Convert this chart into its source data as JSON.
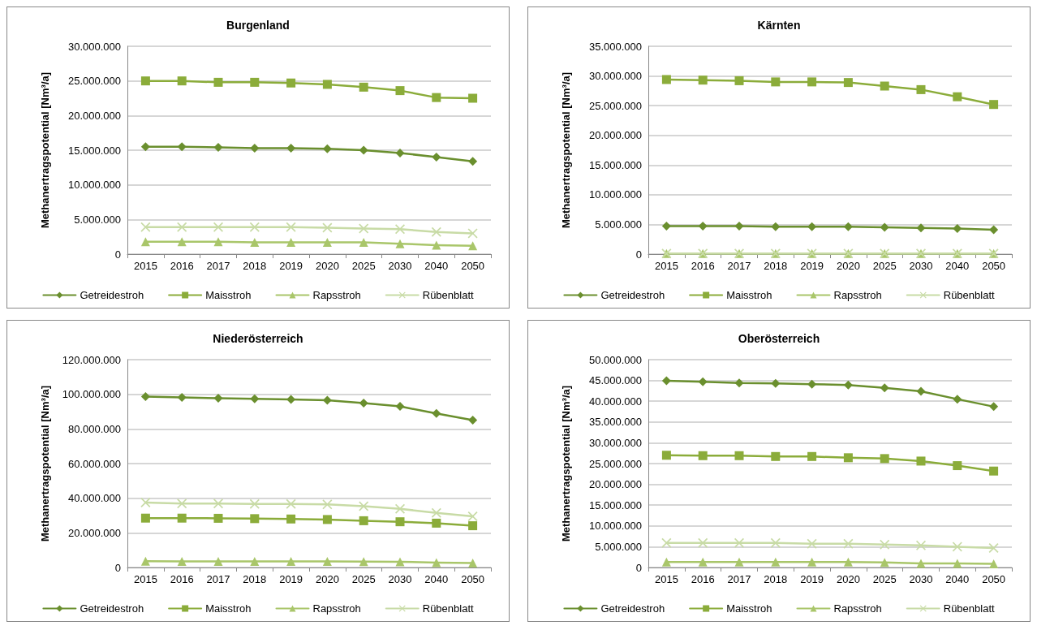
{
  "chart_data": [
    {
      "type": "line",
      "title": "Burgenland",
      "ylabel": "Methanertragspotential [Nm³/a]",
      "categories": [
        "2015",
        "2016",
        "2017",
        "2018",
        "2019",
        "2020",
        "2025",
        "2030",
        "2040",
        "2050"
      ],
      "ylim": [
        0,
        30000000
      ],
      "yticks": [
        {
          "value": 0,
          "label": "0"
        },
        {
          "value": 5000000,
          "label": "5.000.000"
        },
        {
          "value": 10000000,
          "label": "10.000.000"
        },
        {
          "value": 15000000,
          "label": "15.000.000"
        },
        {
          "value": 20000000,
          "label": "20.000.000"
        },
        {
          "value": 25000000,
          "label": "25.000.000"
        },
        {
          "value": 30000000,
          "label": "30.000.000"
        }
      ],
      "grid": "y",
      "legend": "bottom",
      "series": [
        {
          "name": "Getreidestroh",
          "color": "#6a8f2e",
          "marker": "diamond",
          "values": [
            15500000,
            15500000,
            15400000,
            15300000,
            15300000,
            15200000,
            15000000,
            14600000,
            14000000,
            13400000
          ]
        },
        {
          "name": "Maisstroh",
          "color": "#8bac3a",
          "marker": "square",
          "values": [
            25000000,
            25000000,
            24800000,
            24800000,
            24700000,
            24500000,
            24100000,
            23600000,
            22600000,
            22500000
          ]
        },
        {
          "name": "Rapsstroh",
          "color": "#a9c66a",
          "marker": "triangle",
          "values": [
            1800000,
            1800000,
            1800000,
            1700000,
            1700000,
            1700000,
            1700000,
            1500000,
            1300000,
            1200000
          ]
        },
        {
          "name": "Rübenblatt",
          "color": "#c8dba6",
          "marker": "cross",
          "values": [
            3900000,
            3900000,
            3900000,
            3900000,
            3900000,
            3800000,
            3700000,
            3600000,
            3200000,
            3000000
          ]
        }
      ]
    },
    {
      "type": "line",
      "title": "Kärnten",
      "ylabel": "Methanertragspotential [Nm³/a]",
      "categories": [
        "2015",
        "2016",
        "2017",
        "2018",
        "2019",
        "2020",
        "2025",
        "2030",
        "2040",
        "2050"
      ],
      "ylim": [
        0,
        35000000
      ],
      "yticks": [
        {
          "value": 0,
          "label": "0"
        },
        {
          "value": 5000000,
          "label": "5.000.000"
        },
        {
          "value": 10000000,
          "label": "10.000.000"
        },
        {
          "value": 15000000,
          "label": "15.000.000"
        },
        {
          "value": 20000000,
          "label": "20.000.000"
        },
        {
          "value": 25000000,
          "label": "25.000.000"
        },
        {
          "value": 30000000,
          "label": "30.000.000"
        },
        {
          "value": 35000000,
          "label": "35.000.000"
        }
      ],
      "grid": "y",
      "legend": "bottom",
      "series": [
        {
          "name": "Getreidestroh",
          "color": "#6a8f2e",
          "marker": "diamond",
          "values": [
            4700000,
            4700000,
            4700000,
            4600000,
            4600000,
            4600000,
            4500000,
            4400000,
            4300000,
            4100000
          ]
        },
        {
          "name": "Maisstroh",
          "color": "#8bac3a",
          "marker": "square",
          "values": [
            29400000,
            29300000,
            29200000,
            29000000,
            29000000,
            28900000,
            28300000,
            27700000,
            26500000,
            25200000
          ]
        },
        {
          "name": "Rapsstroh",
          "color": "#a9c66a",
          "marker": "triangle",
          "values": [
            100000,
            100000,
            100000,
            100000,
            100000,
            100000,
            100000,
            100000,
            100000,
            100000
          ]
        },
        {
          "name": "Rübenblatt",
          "color": "#c8dba6",
          "marker": "cross",
          "values": [
            100000,
            100000,
            100000,
            100000,
            100000,
            100000,
            100000,
            100000,
            100000,
            100000
          ]
        }
      ]
    },
    {
      "type": "line",
      "title": "Niederösterreich",
      "ylabel": "Methanertragspotential [Nm³/a]",
      "categories": [
        "2015",
        "2016",
        "2017",
        "2018",
        "2019",
        "2020",
        "2025",
        "2030",
        "2040",
        "2050"
      ],
      "ylim": [
        0,
        120000000
      ],
      "yticks": [
        {
          "value": 0,
          "label": "0"
        },
        {
          "value": 20000000,
          "label": "20.000.000"
        },
        {
          "value": 40000000,
          "label": "40.000.000"
        },
        {
          "value": 60000000,
          "label": "60.000.000"
        },
        {
          "value": 80000000,
          "label": "80.000.000"
        },
        {
          "value": 100000000,
          "label": "100.000.000"
        },
        {
          "value": 120000000,
          "label": "120.000.000"
        }
      ],
      "grid": "y",
      "legend": "bottom",
      "series": [
        {
          "name": "Getreidestroh",
          "color": "#6a8f2e",
          "marker": "diamond",
          "values": [
            98700000,
            98200000,
            97700000,
            97400000,
            97000000,
            96600000,
            94900000,
            93000000,
            88900000,
            85100000
          ]
        },
        {
          "name": "Maisstroh",
          "color": "#8bac3a",
          "marker": "square",
          "values": [
            28500000,
            28500000,
            28400000,
            28200000,
            28000000,
            27700000,
            27000000,
            26400000,
            25600000,
            24100000
          ]
        },
        {
          "name": "Rapsstroh",
          "color": "#a9c66a",
          "marker": "triangle",
          "values": [
            3600000,
            3500000,
            3500000,
            3500000,
            3500000,
            3500000,
            3400000,
            3300000,
            2800000,
            2600000
          ]
        },
        {
          "name": "Rübenblatt",
          "color": "#c8dba6",
          "marker": "cross",
          "values": [
            37500000,
            36900000,
            36900000,
            36700000,
            36700000,
            36400000,
            35400000,
            33900000,
            31500000,
            29500000
          ]
        }
      ]
    },
    {
      "type": "line",
      "title": "Oberösterreich",
      "ylabel": "Methanertragspotential [Nm³/a]",
      "categories": [
        "2015",
        "2016",
        "2017",
        "2018",
        "2019",
        "2020",
        "2025",
        "2030",
        "2040",
        "2050"
      ],
      "ylim": [
        0,
        50000000
      ],
      "yticks": [
        {
          "value": 0,
          "label": "0"
        },
        {
          "value": 5000000,
          "label": "5.000.000"
        },
        {
          "value": 10000000,
          "label": "10.000.000"
        },
        {
          "value": 15000000,
          "label": "15.000.000"
        },
        {
          "value": 20000000,
          "label": "20.000.000"
        },
        {
          "value": 25000000,
          "label": "25.000.000"
        },
        {
          "value": 30000000,
          "label": "30.000.000"
        },
        {
          "value": 35000000,
          "label": "35.000.000"
        },
        {
          "value": 40000000,
          "label": "40.000.000"
        },
        {
          "value": 45000000,
          "label": "45.000.000"
        },
        {
          "value": 50000000,
          "label": "50.000.000"
        }
      ],
      "grid": "y",
      "legend": "bottom",
      "series": [
        {
          "name": "Getreidestroh",
          "color": "#6a8f2e",
          "marker": "diamond",
          "values": [
            44900000,
            44700000,
            44400000,
            44300000,
            44100000,
            43900000,
            43200000,
            42400000,
            40500000,
            38700000
          ]
        },
        {
          "name": "Maisstroh",
          "color": "#8bac3a",
          "marker": "square",
          "values": [
            27000000,
            26900000,
            26900000,
            26700000,
            26700000,
            26400000,
            26200000,
            25600000,
            24500000,
            23200000
          ]
        },
        {
          "name": "Rapsstroh",
          "color": "#a9c66a",
          "marker": "triangle",
          "values": [
            1300000,
            1300000,
            1300000,
            1300000,
            1300000,
            1300000,
            1200000,
            1000000,
            1000000,
            900000
          ]
        },
        {
          "name": "Rübenblatt",
          "color": "#c8dba6",
          "marker": "cross",
          "values": [
            5900000,
            5900000,
            5900000,
            5900000,
            5700000,
            5700000,
            5500000,
            5300000,
            5000000,
            4700000
          ]
        }
      ]
    }
  ]
}
